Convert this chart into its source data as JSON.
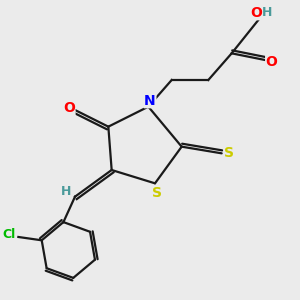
{
  "bg_color": "#ebebeb",
  "bond_color": "#1a1a1a",
  "colors": {
    "O": "#ff0000",
    "N": "#0000ff",
    "S": "#cccc00",
    "Cl": "#00bb00",
    "H": "#4a9a9a",
    "C": "#1a1a1a"
  }
}
